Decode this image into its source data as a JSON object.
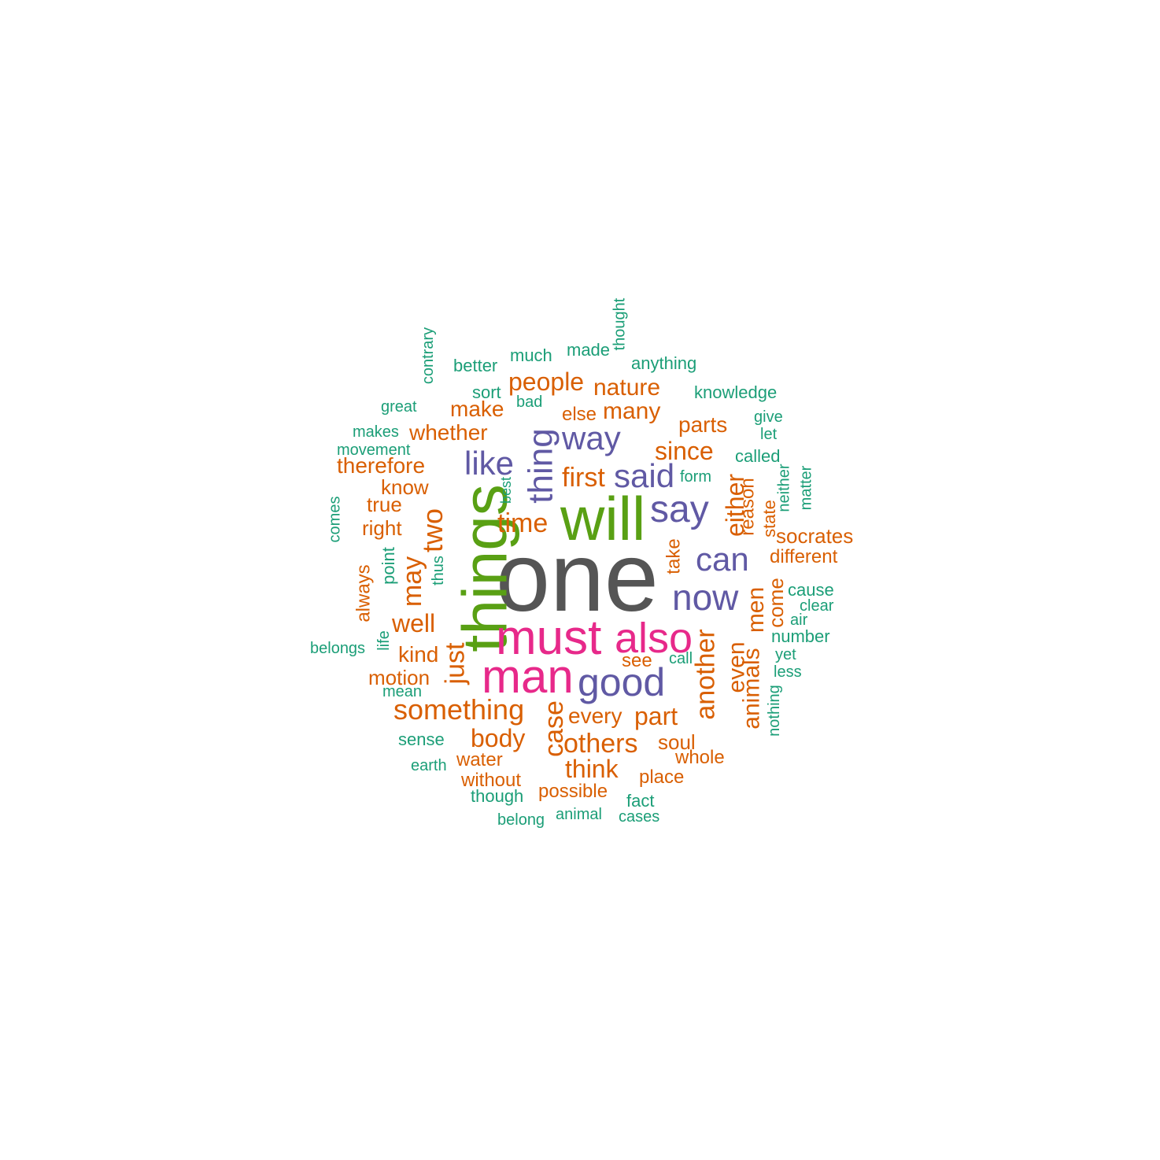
{
  "colors": {
    "tier1": "#555555",
    "tier2": "#59A014",
    "tier3": "#E7298A",
    "tier4": "#6059A4",
    "tier5": "#D95F02",
    "tier6": "#1B9E77"
  },
  "words": {
    "one": "one",
    "things": "things",
    "will": "will",
    "must": "must",
    "also": "also",
    "man": "man",
    "good": "good",
    "say": "say",
    "now": "now",
    "can": "can",
    "way": "way",
    "thing": "thing",
    "said": "said",
    "like": "like",
    "something": "something",
    "another": "another",
    "animals": "animals",
    "others": "others",
    "people": "people",
    "nature": "nature",
    "many": "many",
    "since": "since",
    "first": "first",
    "time": "time",
    "two": "two",
    "well": "well",
    "kind": "kind",
    "part": "part",
    "body": "body",
    "case": "case",
    "think": "think",
    "either": "either",
    "even": "even",
    "men": "men",
    "just": "just",
    "may": "may",
    "whether": "whether",
    "therefore": "therefore",
    "make": "make",
    "parts": "parts",
    "every": "every",
    "motion": "motion",
    "know": "know",
    "true": "true",
    "right": "right",
    "soul": "soul",
    "water": "water",
    "without": "without",
    "possible": "possible",
    "place": "place",
    "whole": "whole",
    "reason": "reason",
    "come": "come",
    "state": "state",
    "socrates": "socrates",
    "different": "different",
    "see": "see",
    "always": "always",
    "take": "take",
    "else": "else",
    "much": "much",
    "made": "made",
    "better": "better",
    "anything": "anything",
    "knowledge": "knowledge",
    "sort": "sort",
    "bad": "bad",
    "great": "great",
    "give": "give",
    "let": "let",
    "makes": "makes",
    "movement": "movement",
    "called": "called",
    "form": "form",
    "best": "best",
    "neither": "neither",
    "matter": "matter",
    "comes": "comes",
    "point": "point",
    "thus": "thus",
    "cause": "cause",
    "clear": "clear",
    "air": "air",
    "number": "number",
    "belongs": "belongs",
    "life": "life",
    "yet": "yet",
    "call": "call",
    "less": "less",
    "mean": "mean",
    "nothing": "nothing",
    "sense": "sense",
    "earth": "earth",
    "though": "though",
    "fact": "fact",
    "belong": "belong",
    "animal": "animal",
    "cases": "cases",
    "contrary": "contrary",
    "thought": "thought"
  }
}
